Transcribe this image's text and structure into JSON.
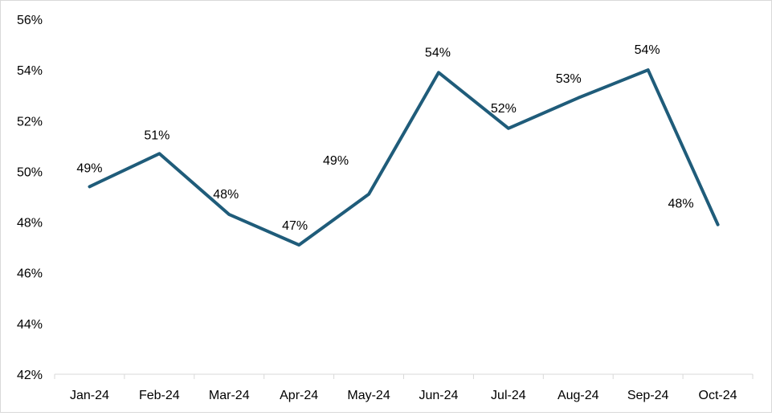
{
  "chart_data": {
    "type": "line",
    "title": "",
    "xlabel": "",
    "ylabel": "",
    "categories": [
      "Jan-24",
      "Feb-24",
      "Mar-24",
      "Apr-24",
      "May-24",
      "Jun-24",
      "Jul-24",
      "Aug-24",
      "Sep-24",
      "Oct-24"
    ],
    "series": [
      {
        "values": [
          49.4,
          50.7,
          48.3,
          47.1,
          49.1,
          53.9,
          51.7,
          52.9,
          54.0,
          47.9
        ],
        "labels": [
          "49%",
          "51%",
          "48%",
          "47%",
          "49%",
          "54%",
          "52%",
          "53%",
          "54%",
          "48%"
        ],
        "color": "#1f5c7a"
      }
    ],
    "ylim": [
      42,
      56
    ],
    "yticks": [
      42,
      44,
      46,
      48,
      50,
      52,
      54,
      56
    ],
    "ytick_labels": [
      "42%",
      "44%",
      "46%",
      "48%",
      "50%",
      "52%",
      "54%",
      "56%"
    ],
    "grid": false,
    "legend": "none"
  }
}
